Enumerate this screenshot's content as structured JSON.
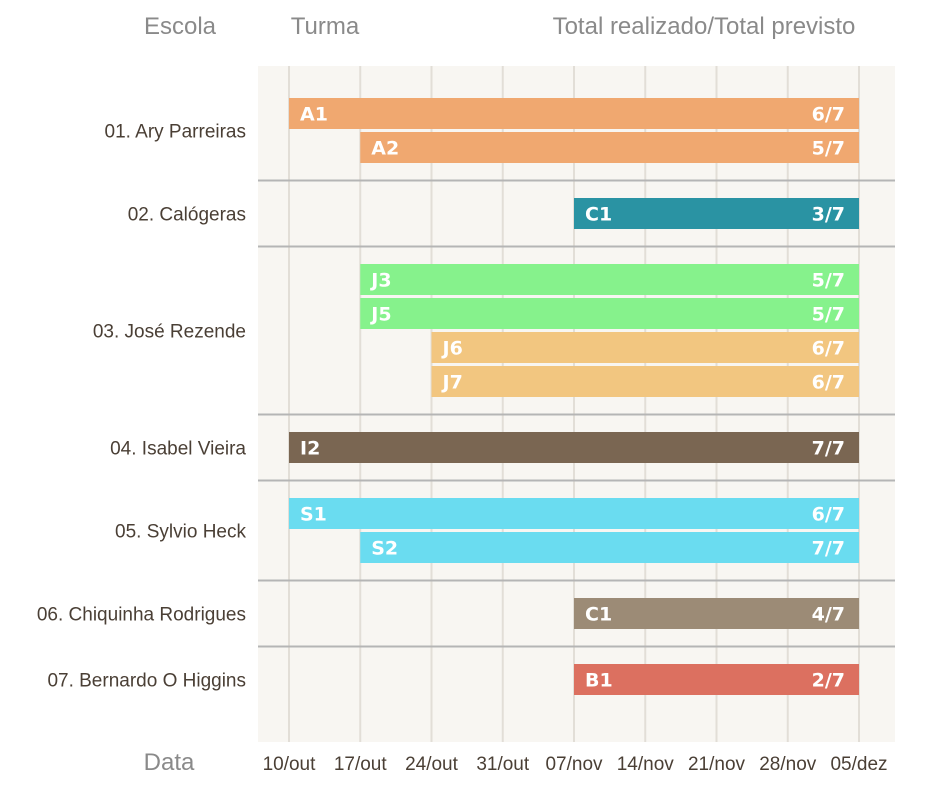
{
  "chart_data": {
    "type": "gantt",
    "headers": {
      "school": "Escola",
      "class": "Turma",
      "total": "Total realizado/Total previsto",
      "date": "Data"
    },
    "x_ticks": [
      "10/out",
      "17/out",
      "24/out",
      "31/out",
      "07/nov",
      "14/nov",
      "21/nov",
      "28/nov",
      "05/dez"
    ],
    "groups": [
      {
        "school": "01. Ary Parreiras",
        "bars": [
          {
            "class": "A1",
            "start": "10/out",
            "end": "05/dez",
            "total": "6/7",
            "color": "#f0a870"
          },
          {
            "class": "A2",
            "start": "17/out",
            "end": "05/dez",
            "total": "5/7",
            "color": "#f0a870"
          }
        ]
      },
      {
        "school": "02. Calógeras",
        "bars": [
          {
            "class": "C1",
            "start": "07/nov",
            "end": "05/dez",
            "total": "3/7",
            "color": "#2a93a3"
          }
        ]
      },
      {
        "school": "03. José Rezende",
        "bars": [
          {
            "class": "J3",
            "start": "17/out",
            "end": "05/dez",
            "total": "5/7",
            "color": "#86f28c"
          },
          {
            "class": "J5",
            "start": "17/out",
            "end": "05/dez",
            "total": "5/7",
            "color": "#86f28c"
          },
          {
            "class": "J6",
            "start": "24/out",
            "end": "05/dez",
            "total": "6/7",
            "color": "#f2c680"
          },
          {
            "class": "J7",
            "start": "24/out",
            "end": "05/dez",
            "total": "6/7",
            "color": "#f2c680"
          }
        ]
      },
      {
        "school": "04. Isabel Vieira",
        "bars": [
          {
            "class": "I2",
            "start": "10/out",
            "end": "05/dez",
            "total": "7/7",
            "color": "#7a6652"
          }
        ]
      },
      {
        "school": "05. Sylvio Heck",
        "bars": [
          {
            "class": "S1",
            "start": "10/out",
            "end": "05/dez",
            "total": "6/7",
            "color": "#6adcf0"
          },
          {
            "class": "S2",
            "start": "17/out",
            "end": "05/dez",
            "total": "7/7",
            "color": "#6adcf0"
          }
        ]
      },
      {
        "school": "06. Chiquinha Rodrigues",
        "bars": [
          {
            "class": "C1",
            "start": "07/nov",
            "end": "05/dez",
            "total": "4/7",
            "color": "#9c8b76"
          }
        ]
      },
      {
        "school": "07. Bernardo O Higgins",
        "bars": [
          {
            "class": "B1",
            "start": "07/nov",
            "end": "05/dez",
            "total": "2/7",
            "color": "#dc7060"
          }
        ]
      }
    ],
    "colors": {
      "plot_background": "#f8f6f2",
      "gridline": "#e2ded7",
      "separator": "#b5b5b5"
    }
  }
}
